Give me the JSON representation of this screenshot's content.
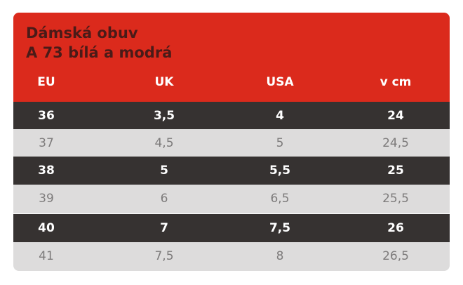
{
  "title": {
    "line1": "Dámská obuv",
    "line2": "A 73 bílá a modrá"
  },
  "columns": [
    "EU",
    "UK",
    "USA",
    "v cm"
  ],
  "rows": [
    [
      "36",
      "3,5",
      "4",
      "24"
    ],
    [
      "37",
      "4,5",
      "5",
      "24,5"
    ],
    [
      "38",
      "5",
      "5,5",
      "25"
    ],
    [
      "39",
      "6",
      "6,5",
      "25,5"
    ],
    [
      "40",
      "7",
      "7,5",
      "26"
    ],
    [
      "41",
      "7,5",
      "8",
      "26,5"
    ]
  ],
  "colors": {
    "header_bg": "#db2a1c",
    "title_text": "#4a1b18",
    "dark_row_bg": "#363231",
    "light_row_bg": "#dddcdc",
    "light_row_text": "#7d7b7b"
  }
}
